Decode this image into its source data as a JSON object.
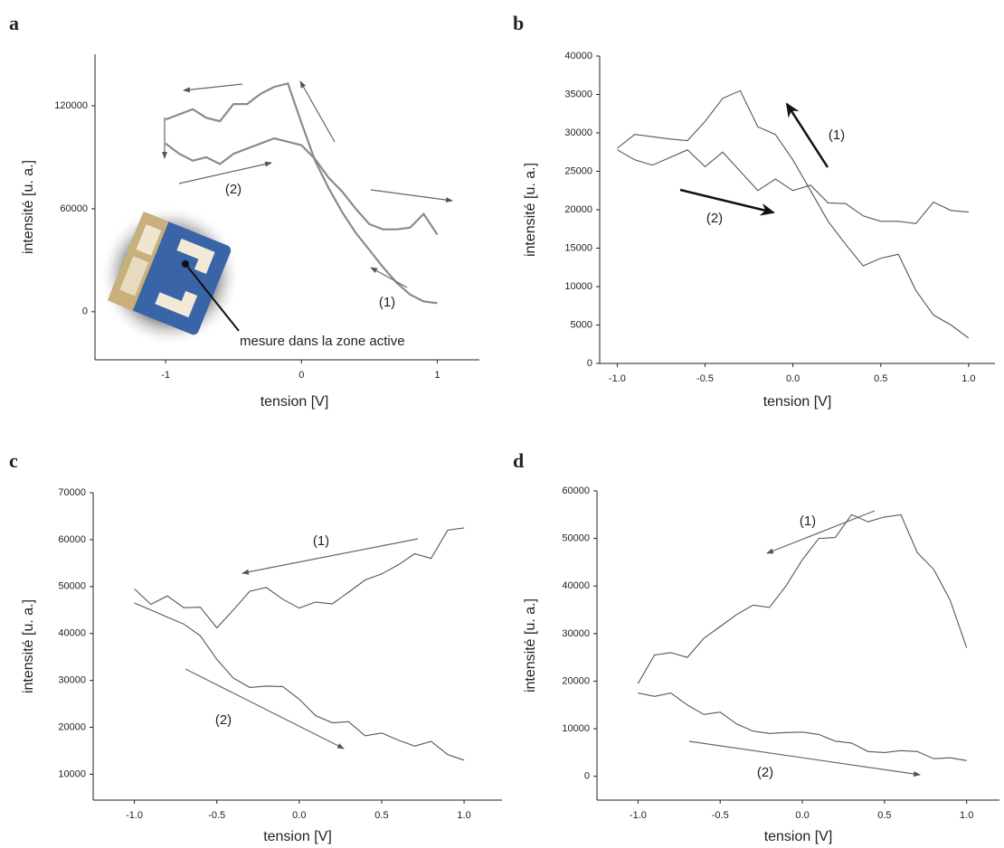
{
  "chart_data": [
    {
      "type": "line",
      "panel": "a",
      "xlabel": "tension [V]",
      "ylabel": "intensité [u. a.]",
      "x": [
        -1,
        -0.9,
        -0.8,
        -0.7,
        -0.6,
        -0.5,
        -0.4,
        -0.3,
        -0.2,
        -0.1,
        0,
        0.1,
        0.2,
        0.3,
        0.4,
        0.5,
        0.6,
        0.7,
        0.8,
        0.9,
        1
      ],
      "series": [
        {
          "name": "(1)",
          "color": "#8a8a8a",
          "values": [
            112000,
            115000,
            118000,
            113000,
            111000,
            121000,
            121000,
            127000,
            131000,
            133000,
            110000,
            88000,
            72000,
            58000,
            46000,
            36000,
            26000,
            17000,
            10000,
            6000,
            5000
          ]
        },
        {
          "name": "(2)",
          "color": "#8a8a8a",
          "values": [
            98000,
            92000,
            88000,
            90000,
            86000,
            92000,
            95000,
            98000,
            101000,
            99000,
            97000,
            89000,
            78000,
            70000,
            60000,
            51000,
            48000,
            48000,
            49000,
            57000,
            45000
          ]
        }
      ],
      "annotations": [
        "mesure dans la zone active"
      ],
      "xlim": [
        -1.52,
        1.31
      ],
      "ylim": [
        -28000,
        150000
      ],
      "xticks": [
        -1,
        0,
        1
      ],
      "yticks": [
        0,
        60000,
        120000
      ]
    },
    {
      "type": "line",
      "panel": "b",
      "xlabel": "tension [V]",
      "ylabel": "intensité [u. a.]",
      "x": [
        -1,
        -0.9,
        -0.8,
        -0.7,
        -0.6,
        -0.5,
        -0.4,
        -0.3,
        -0.2,
        -0.1,
        0,
        0.1,
        0.2,
        0.3,
        0.4,
        0.5,
        0.6,
        0.7,
        0.8,
        0.9,
        1
      ],
      "series": [
        {
          "name": "(1)",
          "color": "#555555",
          "values": [
            28000,
            29800,
            29500,
            29200,
            29000,
            31500,
            34500,
            35500,
            30800,
            29800,
            26500,
            22500,
            18500,
            15500,
            12700,
            13700,
            14200,
            9500,
            6300,
            5000,
            3300
          ]
        },
        {
          "name": "(2)",
          "color": "#555555",
          "values": [
            27800,
            26500,
            25800,
            26800,
            27800,
            25600,
            27500,
            25000,
            22500,
            24000,
            22500,
            23200,
            20900,
            20800,
            19200,
            18500,
            18500,
            18200,
            21000,
            19900,
            19700
          ]
        }
      ],
      "xlim": [
        -1.1,
        1.15
      ],
      "ylim": [
        0,
        40000
      ],
      "xticks": [
        {
          "value": -1,
          "label": "-1.0"
        },
        -0.5,
        {
          "value": 0,
          "label": "0.0"
        },
        0.5,
        {
          "value": 1,
          "label": "1.0"
        }
      ],
      "yticks": [
        0,
        5000,
        10000,
        15000,
        20000,
        25000,
        30000,
        35000,
        40000
      ]
    },
    {
      "type": "line",
      "panel": "c",
      "xlabel": "tension [V]",
      "ylabel": "intensité [u. a.]",
      "x": [
        -1,
        -0.9,
        -0.8,
        -0.7,
        -0.6,
        -0.5,
        -0.4,
        -0.3,
        -0.2,
        -0.1,
        0,
        0.1,
        0.2,
        0.3,
        0.4,
        0.5,
        0.6,
        0.7,
        0.8,
        0.9,
        1
      ],
      "series": [
        {
          "name": "(1)",
          "color": "#555555",
          "values": [
            49500,
            46200,
            48000,
            45500,
            45600,
            41200,
            45000,
            49000,
            49800,
            47300,
            45400,
            46700,
            46300,
            48800,
            51400,
            52700,
            54600,
            57000,
            56000,
            62000,
            62500
          ]
        },
        {
          "name": "(2)",
          "color": "#555555",
          "values": [
            46500,
            45000,
            43500,
            42000,
            39500,
            34500,
            30500,
            28500,
            28800,
            28700,
            26000,
            22500,
            21000,
            21200,
            18200,
            18800,
            17300,
            16000,
            17000,
            14200,
            13000
          ]
        }
      ],
      "xlim": [
        -1.25,
        1.23
      ],
      "ylim": [
        4500,
        70000
      ],
      "xticks": [
        {
          "value": -1,
          "label": "-1.0"
        },
        -0.5,
        {
          "value": 0,
          "label": "0.0"
        },
        0.5,
        {
          "value": 1,
          "label": "1.0"
        }
      ],
      "yticks": [
        10000,
        20000,
        30000,
        40000,
        50000,
        60000,
        70000
      ]
    },
    {
      "type": "line",
      "panel": "d",
      "xlabel": "tension [V]",
      "ylabel": "intensité [u. a.]",
      "x": [
        -1,
        -0.9,
        -0.8,
        -0.7,
        -0.6,
        -0.5,
        -0.4,
        -0.3,
        -0.2,
        -0.1,
        0,
        0.1,
        0.2,
        0.3,
        0.4,
        0.5,
        0.6,
        0.7,
        0.8,
        0.9,
        1
      ],
      "series": [
        {
          "name": "(1)",
          "color": "#555555",
          "values": [
            19500,
            25500,
            26000,
            25000,
            29000,
            31500,
            34000,
            36000,
            35500,
            40000,
            45500,
            50000,
            50200,
            55000,
            53500,
            54500,
            55000,
            47000,
            43500,
            37000,
            27000
          ]
        },
        {
          "name": "(2)",
          "color": "#555555",
          "values": [
            17500,
            16800,
            17500,
            15000,
            13000,
            13500,
            11000,
            9500,
            9000,
            9200,
            9300,
            8800,
            7400,
            7000,
            5200,
            5000,
            5400,
            5200,
            3700,
            3900,
            3300
          ]
        }
      ],
      "xlim": [
        -1.25,
        1.2
      ],
      "ylim": [
        -5000,
        60000
      ],
      "xticks": [
        {
          "value": -1,
          "label": "-1.0"
        },
        -0.5,
        {
          "value": 0,
          "label": "0.0"
        },
        0.5,
        {
          "value": 1,
          "label": "1.0"
        }
      ],
      "yticks": [
        0,
        10000,
        20000,
        30000,
        40000,
        50000,
        60000
      ]
    }
  ]
}
